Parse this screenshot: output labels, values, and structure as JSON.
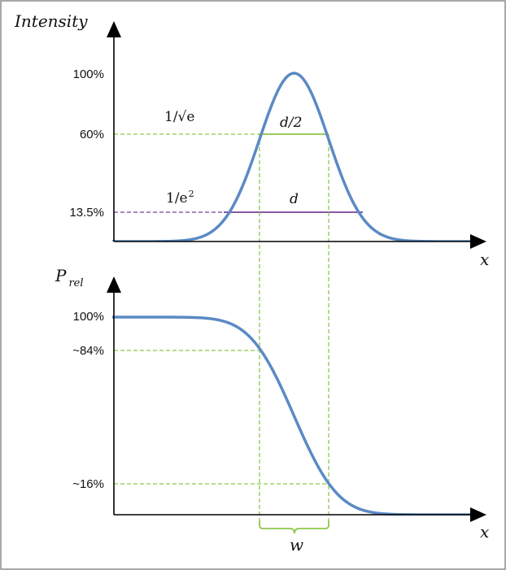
{
  "top_plot": {
    "y_title": "Intensity",
    "x_label": "x",
    "ticks": [
      "100%",
      "60%",
      "13.5%"
    ],
    "annotations": {
      "level_60": "1/√e",
      "level_13": "1/e2",
      "width_60": "d/2",
      "width_13": "d"
    }
  },
  "bottom_plot": {
    "y_title_main": "P",
    "y_title_sub": "rel",
    "x_label": "x",
    "ticks": [
      "100%",
      "~84%",
      "~16%"
    ],
    "width_label": "w"
  },
  "colors": {
    "curve": "#5b8ac4",
    "guide": "#8fc64a",
    "d_line": "#7b3f91",
    "axis": "#000000",
    "border": "#8c8c8c"
  }
}
